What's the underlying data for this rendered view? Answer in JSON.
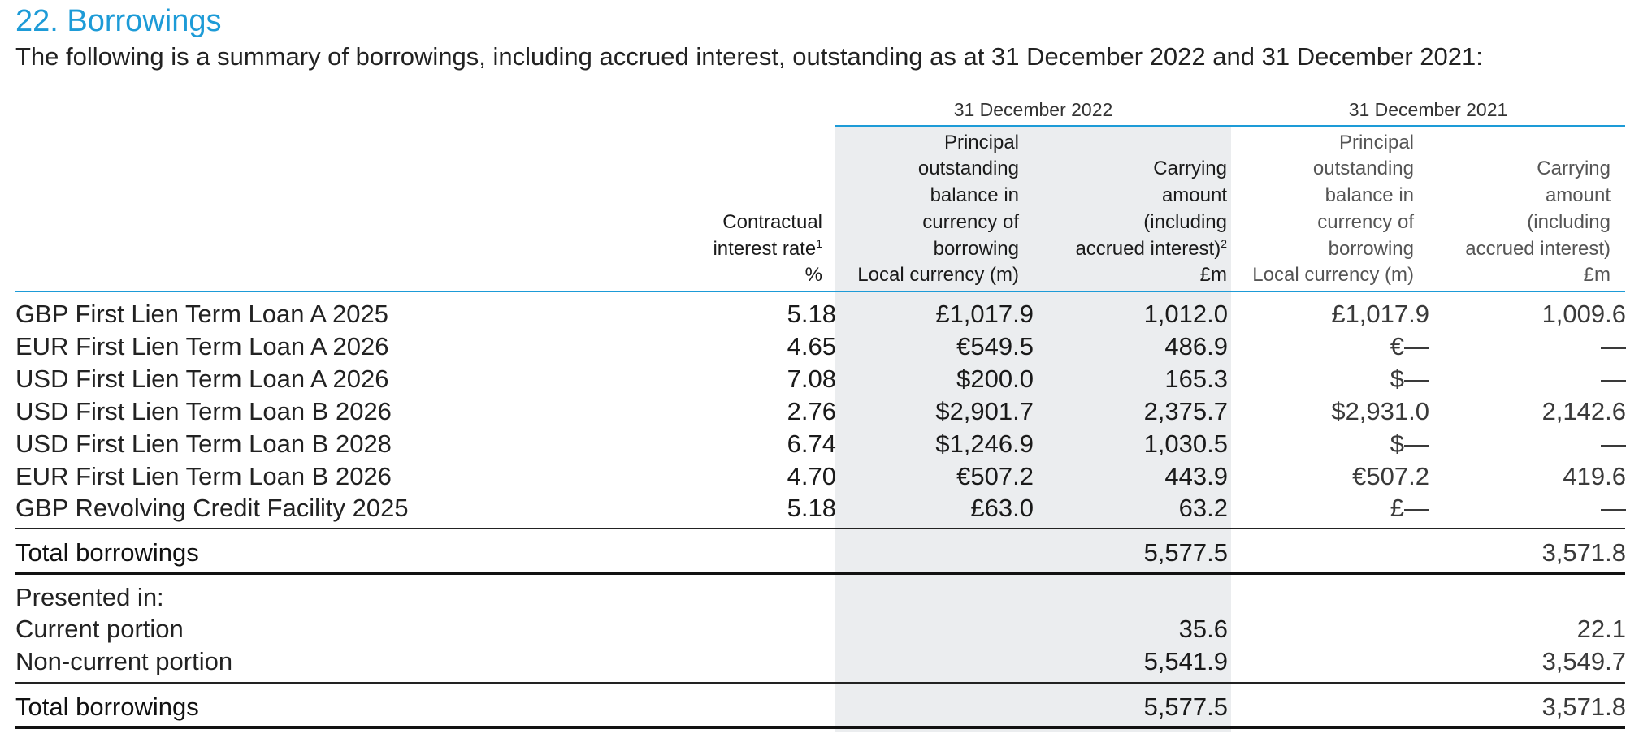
{
  "title": "22. Borrowings",
  "intro": "The following is a summary of borrowings, including accrued interest, outstanding as at 31 December 2022 and 31 December 2021:",
  "periods": {
    "current": "31 December 2022",
    "prior": "31 December 2021"
  },
  "column_headers": {
    "rate": {
      "lines": [
        "Contractual",
        "interest rate"
      ],
      "footnote": "1",
      "unit": "%"
    },
    "principal_2022": {
      "lines": [
        "Principal",
        "outstanding",
        "balance in",
        "currency of",
        "borrowing"
      ],
      "unit": "Local currency (m)"
    },
    "carrying_2022": {
      "lines": [
        "Carrying",
        "amount",
        "(including",
        "accrued interest)"
      ],
      "footnote": "2",
      "unit": "£m"
    },
    "principal_2021": {
      "lines": [
        "Principal",
        "outstanding",
        "balance in",
        "currency of",
        "borrowing"
      ],
      "unit": "Local currency (m)"
    },
    "carrying_2021": {
      "lines": [
        "Carrying",
        "amount",
        "(including",
        "accrued interest)"
      ],
      "unit": "£m"
    }
  },
  "rows": [
    {
      "label": "GBP First Lien Term Loan A 2025",
      "rate": "5.18",
      "principal_2022": "£1,017.9",
      "carrying_2022": "1,012.0",
      "principal_2021": "£1,017.9",
      "carrying_2021": "1,009.6"
    },
    {
      "label": "EUR First Lien Term Loan A 2026",
      "rate": "4.65",
      "principal_2022": "€549.5",
      "carrying_2022": "486.9",
      "principal_2021": "€—",
      "carrying_2021": "—"
    },
    {
      "label": "USD First Lien Term Loan A 2026",
      "rate": "7.08",
      "principal_2022": "$200.0",
      "carrying_2022": "165.3",
      "principal_2021": "$—",
      "carrying_2021": "—"
    },
    {
      "label": "USD First Lien Term Loan B 2026",
      "rate": "2.76",
      "principal_2022": "$2,901.7",
      "carrying_2022": "2,375.7",
      "principal_2021": "$2,931.0",
      "carrying_2021": "2,142.6"
    },
    {
      "label": "USD First Lien Term Loan B 2028",
      "rate": "6.74",
      "principal_2022": "$1,246.9",
      "carrying_2022": "1,030.5",
      "principal_2021": "$—",
      "carrying_2021": "—"
    },
    {
      "label": "EUR First Lien Term Loan B 2026",
      "rate": "4.70",
      "principal_2022": "€507.2",
      "carrying_2022": "443.9",
      "principal_2021": "€507.2",
      "carrying_2021": "419.6"
    },
    {
      "label": "GBP Revolving Credit Facility 2025",
      "rate": "5.18",
      "principal_2022": "£63.0",
      "carrying_2022": "63.2",
      "principal_2021": "£—",
      "carrying_2021": "—"
    }
  ],
  "total_1": {
    "label": "Total borrowings",
    "carrying_2022": "5,577.5",
    "carrying_2021": "3,571.8"
  },
  "presented_in": {
    "heading": "Presented in:",
    "current": {
      "label": "Current portion",
      "carrying_2022": "35.6",
      "carrying_2021": "22.1"
    },
    "non_current": {
      "label": "Non-current portion",
      "carrying_2022": "5,541.9",
      "carrying_2021": "3,549.7"
    }
  },
  "total_2": {
    "label": "Total borrowings",
    "carrying_2022": "5,577.5",
    "carrying_2021": "3,571.8"
  }
}
